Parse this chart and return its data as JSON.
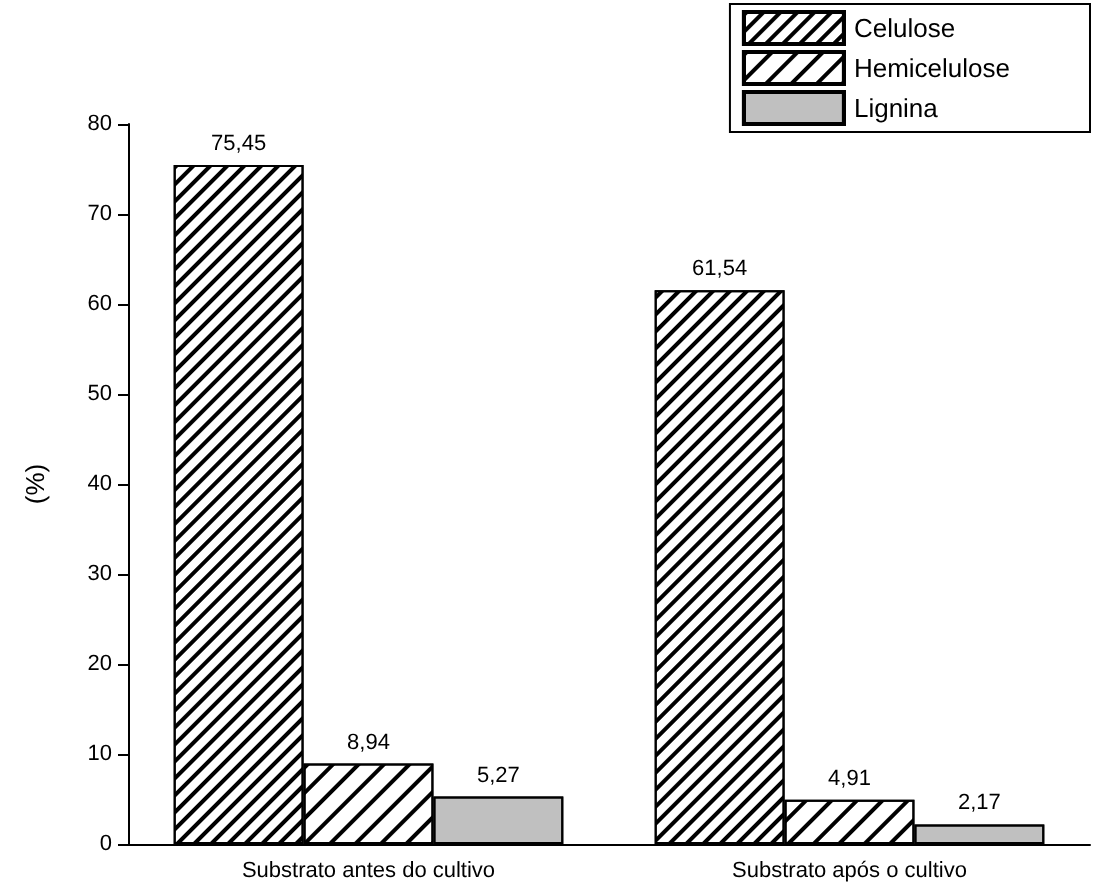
{
  "chart_data": {
    "type": "bar",
    "ylabel": "(%)",
    "categories": [
      "Substrato antes do cultivo",
      "Substrato após o cultivo"
    ],
    "series": [
      {
        "name": "Celulose",
        "color": "#ffffff",
        "values": [
          75.45,
          61.54
        ],
        "value_labels": [
          "75,45",
          "61,54"
        ]
      },
      {
        "name": "Hemicelulose",
        "color": "#ffffff",
        "values": [
          8.94,
          4.91
        ],
        "value_labels": [
          "8,94",
          "4,91"
        ]
      },
      {
        "name": "Lignina",
        "color": "#c0c0c0",
        "values": [
          5.27,
          2.17
        ],
        "value_labels": [
          "5,27",
          "2,17"
        ]
      }
    ],
    "ylim": [
      0,
      80
    ],
    "yticks": [
      0,
      10,
      20,
      30,
      40,
      50,
      60,
      70,
      80
    ],
    "grid": false,
    "legend": "top right"
  }
}
